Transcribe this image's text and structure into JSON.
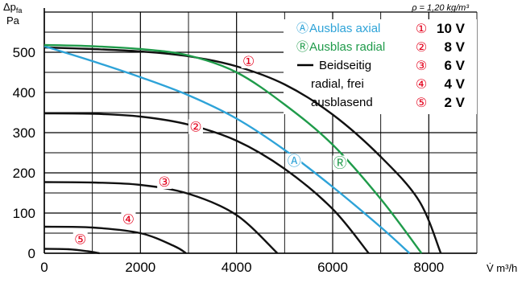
{
  "chart_data": {
    "type": "line",
    "title": "",
    "ylabel_main": "Δp",
    "ylabel_sub": "fa",
    "yunit": "Pa",
    "xlabel": "V̇  m³/h",
    "density_note": "ρ = 1,20 kg/m³",
    "xlim": [
      0,
      9000
    ],
    "ylim": [
      0,
      600
    ],
    "xticks": [
      0,
      2000,
      4000,
      6000,
      8000
    ],
    "yticks": [
      0,
      100,
      200,
      300,
      400,
      500
    ],
    "grid": true,
    "legend": {
      "position": "top-right",
      "curve_types": [
        {
          "marker": "Ⓐ",
          "label": "Ausblas axial",
          "color": "#2ea3d8"
        },
        {
          "marker": "Ⓡ",
          "label": "Ausblas radial",
          "color": "#1f9b4a"
        },
        {
          "marker": "",
          "label_lines": [
            "Beidseitig",
            "radial, frei",
            "ausblasend"
          ],
          "color": "#111111"
        }
      ],
      "voltages": [
        {
          "marker": "①",
          "label": "10 V"
        },
        {
          "marker": "②",
          "label": "8 V"
        },
        {
          "marker": "③",
          "label": "6 V"
        },
        {
          "marker": "④",
          "label": "4 V"
        },
        {
          "marker": "⑤",
          "label": "2 V"
        }
      ]
    },
    "series": [
      {
        "name": "Ausblas axial",
        "color": "#2ea3d8",
        "label": "Ⓐ",
        "label_at": [
          5200,
          230
        ],
        "points": [
          [
            0,
            515
          ],
          [
            1000,
            478
          ],
          [
            2000,
            438
          ],
          [
            3000,
            393
          ],
          [
            4000,
            335
          ],
          [
            5000,
            257
          ],
          [
            6000,
            165
          ],
          [
            7000,
            65
          ],
          [
            7600,
            0
          ]
        ]
      },
      {
        "name": "Ausblas radial",
        "color": "#1f9b4a",
        "label": "Ⓡ",
        "label_at": [
          6150,
          225
        ],
        "points": [
          [
            0,
            518
          ],
          [
            1000,
            515
          ],
          [
            2000,
            508
          ],
          [
            3000,
            492
          ],
          [
            4000,
            450
          ],
          [
            5000,
            370
          ],
          [
            6000,
            270
          ],
          [
            7000,
            135
          ],
          [
            7850,
            0
          ]
        ]
      },
      {
        "name": "① 10 V",
        "color": "#111111",
        "label": "①",
        "label_at": [
          4250,
          478
        ],
        "points": [
          [
            0,
            512
          ],
          [
            1000,
            508
          ],
          [
            2000,
            502
          ],
          [
            3000,
            490
          ],
          [
            4000,
            465
          ],
          [
            5000,
            420
          ],
          [
            6000,
            345
          ],
          [
            7000,
            240
          ],
          [
            7800,
            130
          ],
          [
            8250,
            0
          ]
        ]
      },
      {
        "name": "② 8 V",
        "color": "#111111",
        "label": "②",
        "label_at": [
          3150,
          315
        ],
        "points": [
          [
            0,
            348
          ],
          [
            1000,
            347
          ],
          [
            2000,
            340
          ],
          [
            3000,
            320
          ],
          [
            4000,
            280
          ],
          [
            5000,
            210
          ],
          [
            6000,
            110
          ],
          [
            6750,
            0
          ]
        ]
      },
      {
        "name": "③ 6 V",
        "color": "#111111",
        "label": "③",
        "label_at": [
          2500,
          178
        ],
        "points": [
          [
            0,
            177
          ],
          [
            1000,
            176
          ],
          [
            2000,
            170
          ],
          [
            3000,
            148
          ],
          [
            4000,
            95
          ],
          [
            4850,
            0
          ]
        ]
      },
      {
        "name": "④ 4 V",
        "color": "#111111",
        "label": "④",
        "label_at": [
          1750,
          85
        ],
        "points": [
          [
            0,
            66
          ],
          [
            1000,
            64
          ],
          [
            2000,
            50
          ],
          [
            2700,
            18
          ],
          [
            2950,
            0
          ]
        ]
      },
      {
        "name": "⑤ 2 V",
        "color": "#111111",
        "label": "⑤",
        "label_at": [
          750,
          35
        ],
        "points": [
          [
            0,
            11
          ],
          [
            500,
            10
          ],
          [
            900,
            5
          ],
          [
            1150,
            0
          ]
        ]
      }
    ]
  }
}
